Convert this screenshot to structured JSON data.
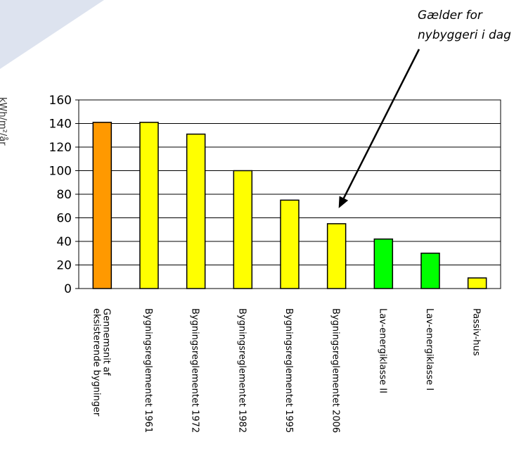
{
  "chart_data": {
    "type": "bar",
    "ylabel": "kWh/m²/år",
    "ylim": [
      0,
      160
    ],
    "yticks": [
      0,
      20,
      40,
      60,
      80,
      100,
      120,
      140,
      160
    ],
    "grid": true,
    "categories": [
      "Gennemsnit af eksisterende bygninger",
      "Bygningsreglementet 1961",
      "Bygningsreglementet 1972",
      "Bygningsreglementet 1982",
      "Bygningsreglementet 1995",
      "Bygningsreglementet 2006",
      "Lav-energiklasse II",
      "Lav-energiklasse I",
      "Passiv-hus"
    ],
    "values": [
      141,
      141,
      131,
      100,
      75,
      55,
      42,
      30,
      9
    ],
    "colors": [
      "#FF9900",
      "#FFFF00",
      "#FFFF00",
      "#FFFF00",
      "#FFFF00",
      "#FFFF00",
      "#00FF00",
      "#00FF00",
      "#FFFF00"
    ],
    "annotation": {
      "lines": [
        "Gælder for",
        "nybyggeri i dag"
      ],
      "points_to_category": "Bygningsreglementet 2006"
    }
  }
}
